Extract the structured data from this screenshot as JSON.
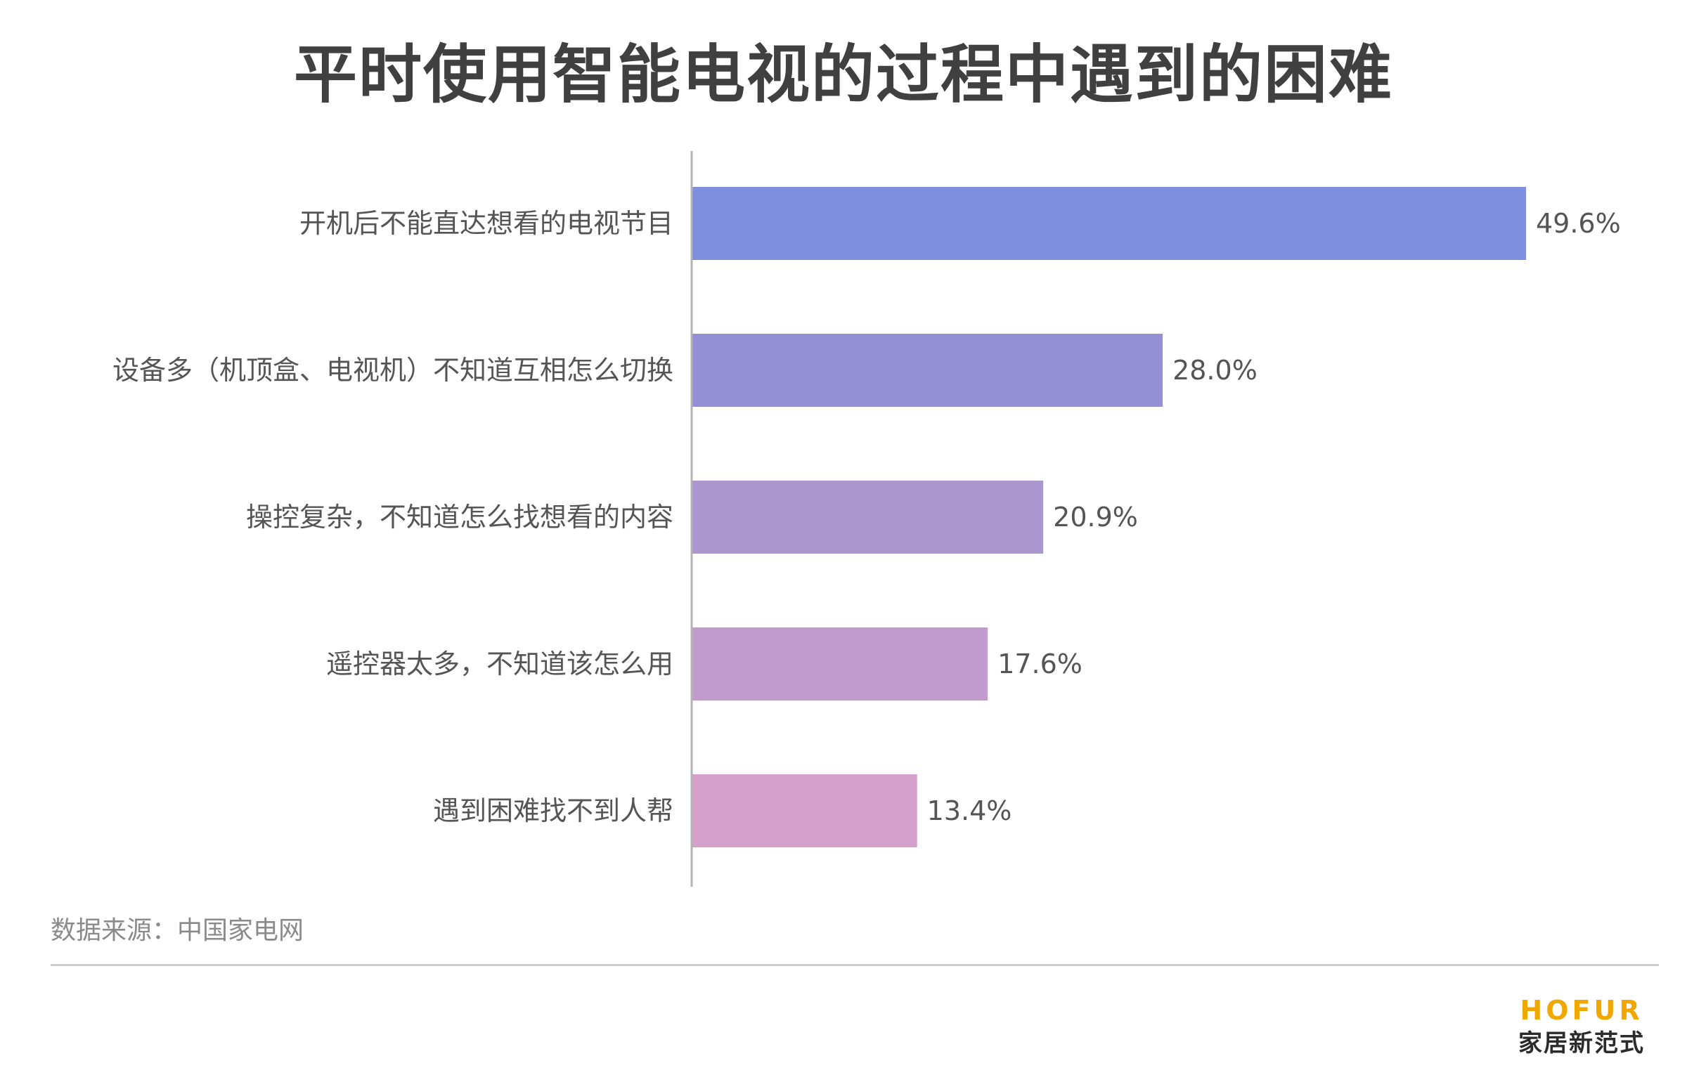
{
  "title": "平时使用智能电视的过程中遇到的困难",
  "chart_data": {
    "type": "bar",
    "orientation": "horizontal",
    "title": "平时使用智能电视的过程中遇到的困难",
    "categories": [
      "开机后不能直达想看的电视节目",
      "设备多（机顶盒、电视机）不知道互相怎么切换",
      "操控复杂，不知道怎么找想看的内容",
      "遥控器太多，不知道该怎么用",
      "遇到困难找不到人帮"
    ],
    "values": [
      49.6,
      28.0,
      20.9,
      17.6,
      13.4
    ],
    "value_labels": [
      "49.6%",
      "28.0%",
      "20.9%",
      "17.6%",
      "13.4%"
    ],
    "unit": "%",
    "bar_colors": [
      "#7f8fdf",
      "#9590d5",
      "#aa97d0",
      "#c09bcc",
      "#d3a1cb"
    ],
    "xlim": [
      0,
      55
    ],
    "grid": false,
    "legend": "none"
  },
  "source": "数据来源：中国家电网",
  "brand": {
    "logo": "HOFUR",
    "tagline": "家居新范式"
  },
  "colors": {
    "title": "#404040",
    "label": "#555555",
    "source": "#8a8a8a",
    "axis": "#b3b3b3",
    "brand_accent": "#f0a800"
  }
}
